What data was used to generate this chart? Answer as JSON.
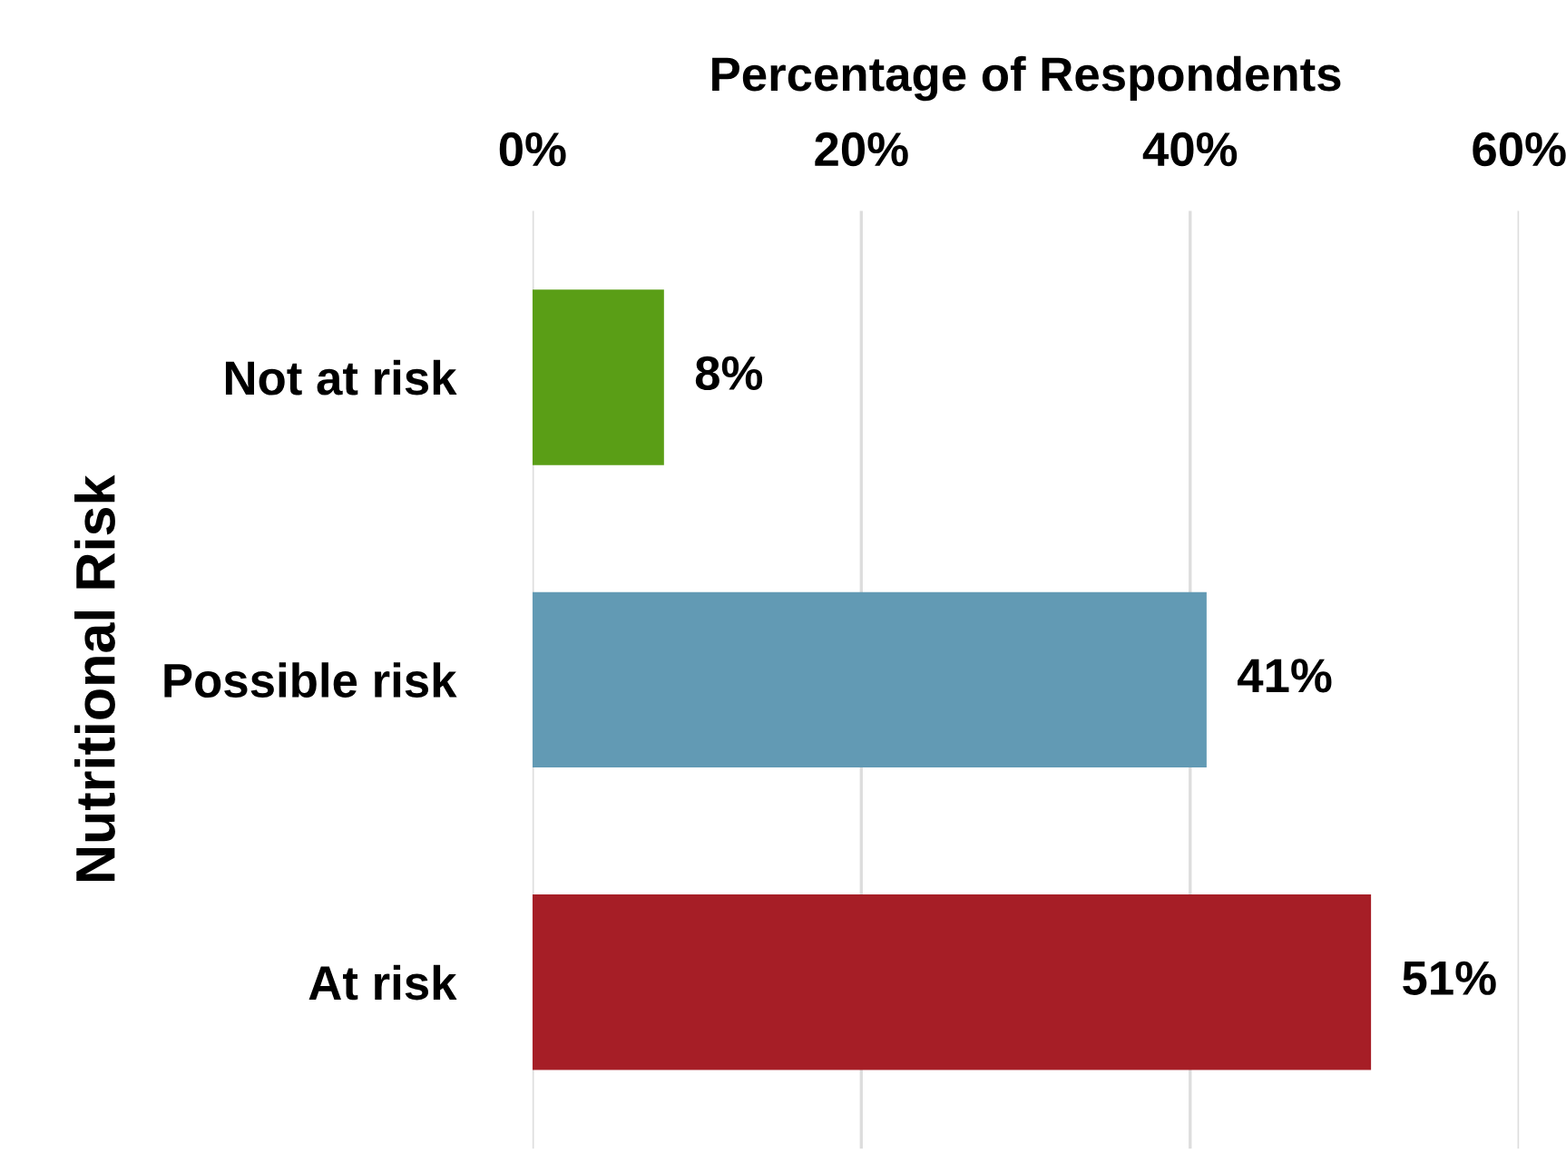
{
  "chart_data": {
    "type": "bar",
    "orientation": "horizontal",
    "xlabel": "Percentage of Respondents",
    "ylabel": "Nutritional Risk",
    "categories": [
      "Not at risk",
      "Possible risk",
      "At risk"
    ],
    "values": [
      8,
      41,
      51
    ],
    "colors": [
      "#5a9e16",
      "#629ab4",
      "#a61e26"
    ],
    "value_labels": [
      "8%",
      "41%",
      "51%"
    ],
    "xlim": [
      0,
      60
    ],
    "xticks": [
      {
        "value": 0,
        "label": "0%"
      },
      {
        "value": 20,
        "label": "20%"
      },
      {
        "value": 40,
        "label": "40%"
      },
      {
        "value": 60,
        "label": "60%"
      }
    ],
    "grid": "x"
  }
}
